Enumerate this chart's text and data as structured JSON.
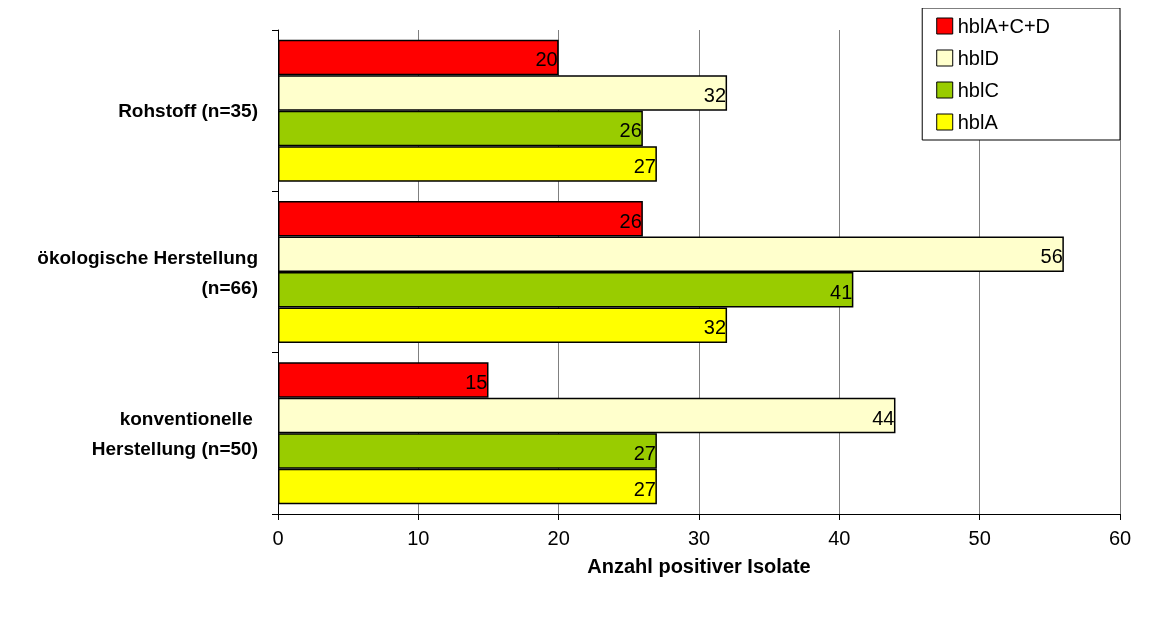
{
  "chart_data": {
    "type": "bar",
    "orientation": "horizontal",
    "xlabel": "Anzahl positiver Isolate",
    "categories": [
      "Rohstoff (n=35)",
      "ökologische Herstellung (n=66)",
      "konventionelle Herstellung (n=50)"
    ],
    "series": [
      {
        "name": "hblA+C+D",
        "color": "#ff0000",
        "values": [
          20,
          26,
          15
        ]
      },
      {
        "name": "hblD",
        "color": "#ffffcc",
        "values": [
          32,
          56,
          44
        ]
      },
      {
        "name": "hblC",
        "color": "#99cc00",
        "values": [
          26,
          41,
          27
        ]
      },
      {
        "name": "hblA",
        "color": "#ffff00",
        "values": [
          27,
          32,
          27
        ]
      }
    ],
    "xlim": [
      0,
      60
    ],
    "xticks": [
      0,
      10,
      20,
      30,
      40,
      50,
      60
    ],
    "grid": "x",
    "legend": "top right",
    "data_labels": true
  }
}
